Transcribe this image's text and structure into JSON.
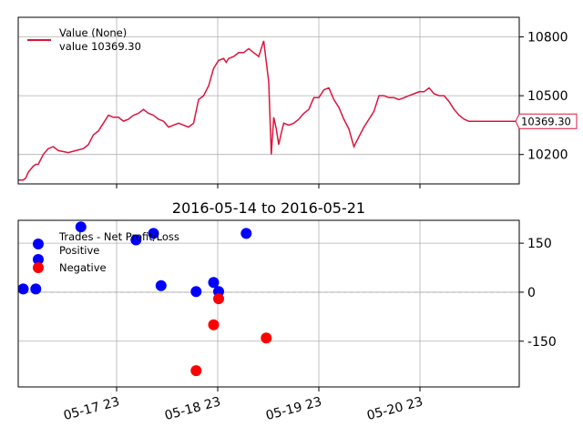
{
  "chart_data": [
    {
      "type": "line",
      "panel": "value",
      "legend": {
        "placement": "top-left",
        "entries": [
          "Value (None)",
          "value 10369.30"
        ]
      },
      "last_value_label": "10369.30",
      "colors": {
        "line": "#dc143c"
      },
      "ylim": [
        10050,
        10900
      ],
      "y_ticks": [
        {
          "value": 10200,
          "label": "10200"
        },
        {
          "value": 10500,
          "label": "10500"
        },
        {
          "value": 10800,
          "label": "10800"
        }
      ],
      "grid": true,
      "series": [
        {
          "x": [
            0,
            0.1,
            0.15,
            0.2,
            0.3,
            0.35,
            0.4,
            0.5,
            0.6,
            0.7,
            0.8,
            1.0,
            1.15,
            1.3,
            1.4,
            1.5,
            1.6,
            1.7,
            1.8,
            1.9,
            2.0,
            2.1,
            2.2,
            2.3,
            2.4,
            2.5,
            2.6,
            2.7,
            2.8,
            2.9,
            3.0,
            3.1,
            3.2,
            3.3,
            3.4,
            3.5,
            3.6,
            3.7,
            3.8,
            3.9,
            4.0,
            4.1,
            4.15,
            4.2,
            4.3,
            4.4,
            4.5,
            4.6,
            4.7,
            4.8,
            4.9,
            5.0,
            5.05,
            5.1,
            5.15,
            5.2,
            5.25,
            5.3,
            5.4,
            5.5,
            5.6,
            5.7,
            5.8,
            5.9,
            6.0,
            6.1,
            6.2,
            6.3,
            6.4,
            6.5,
            6.6,
            6.7,
            6.8,
            6.9,
            7.0,
            7.1,
            7.2,
            7.3,
            7.4,
            7.5,
            7.6,
            7.7,
            7.8,
            7.9,
            8.0,
            8.1,
            8.2,
            8.3,
            8.4,
            8.5,
            8.6,
            8.7,
            8.8,
            8.9,
            9.0,
            9.1,
            9.2,
            9.3,
            9.4,
            9.5,
            9.6,
            9.7,
            9.8,
            9.9,
            10.0
          ],
          "y": [
            10070,
            10070,
            10080,
            10110,
            10140,
            10150,
            10150,
            10200,
            10230,
            10240,
            10220,
            10210,
            10220,
            10230,
            10250,
            10300,
            10320,
            10360,
            10400,
            10390,
            10390,
            10370,
            10380,
            10400,
            10410,
            10430,
            10410,
            10400,
            10380,
            10370,
            10340,
            10350,
            10360,
            10350,
            10340,
            10360,
            10480,
            10500,
            10550,
            10640,
            10680,
            10690,
            10670,
            10690,
            10700,
            10720,
            10720,
            10740,
            10720,
            10700,
            10780,
            10570,
            10200,
            10390,
            10330,
            10250,
            10310,
            10360,
            10350,
            10360,
            10380,
            10410,
            10430,
            10490,
            10490,
            10530,
            10540,
            10480,
            10440,
            10380,
            10330,
            10240,
            10290,
            10340,
            10380,
            10420,
            10500,
            10500,
            10490,
            10490,
            10480,
            10490,
            10500,
            10510,
            10520,
            10520,
            10540,
            10510,
            10500,
            10500,
            10470,
            10430,
            10400,
            10380,
            10369.3,
            10369.3,
            10369.3,
            10369.3,
            10369.3,
            10369.3,
            10369.3,
            10369.3,
            10369.3,
            10369.3,
            10369.3
          ]
        }
      ]
    },
    {
      "type": "scatter",
      "panel": "trades",
      "title": "2016-05-14 to 2016-05-21",
      "legend": {
        "placement": "top-left",
        "title": "Trades - Net Profit/Loss",
        "entries": [
          "Positive",
          "Negative"
        ]
      },
      "colors": {
        "positive": "#0000ff",
        "negative": "#ff0000"
      },
      "ylim": [
        -290,
        220
      ],
      "y_ticks": [
        {
          "value": -150,
          "label": "-150"
        },
        {
          "value": 0,
          "label": "0"
        },
        {
          "value": 150,
          "label": "150"
        }
      ],
      "x_ticks": [
        "05-17 23",
        "05-18 23",
        "05-19 23",
        "05-20 23"
      ],
      "grid": true,
      "zero_line": true,
      "series": [
        {
          "name": "Positive",
          "x": [
            0.1,
            0.35,
            1.25,
            2.35,
            2.7,
            2.85,
            3.55,
            3.9,
            4.0,
            4.55
          ],
          "y": [
            10,
            10,
            200,
            160,
            180,
            20,
            2,
            30,
            2,
            180
          ]
        },
        {
          "name": "Negative",
          "x": [
            3.55,
            3.9,
            4.0,
            4.95
          ],
          "y": [
            -240,
            -100,
            -20,
            -140
          ]
        }
      ]
    }
  ]
}
